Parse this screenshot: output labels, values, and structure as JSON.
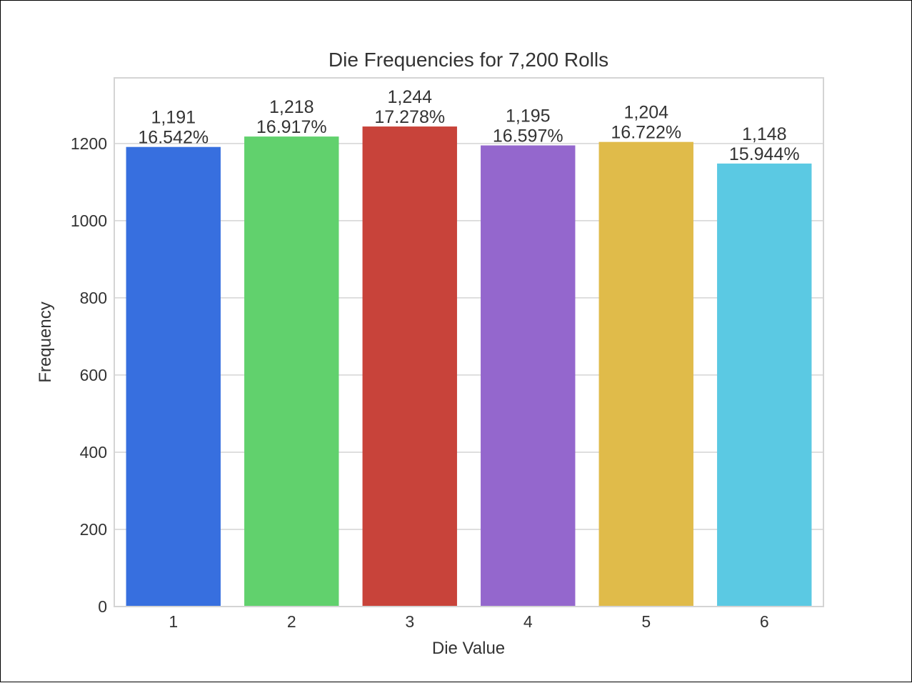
{
  "chart_data": {
    "type": "bar",
    "title": "Die Frequencies for 7,200 Rolls",
    "xlabel": "Die Value",
    "ylabel": "Frequency",
    "categories": [
      "1",
      "2",
      "3",
      "4",
      "5",
      "6"
    ],
    "values": [
      1191,
      1218,
      1244,
      1195,
      1204,
      1148
    ],
    "data_labels": [
      [
        "1,191",
        "16.542%"
      ],
      [
        "1,218",
        "16.917%"
      ],
      [
        "1,244",
        "17.278%"
      ],
      [
        "1,195",
        "16.597%"
      ],
      [
        "1,204",
        "16.722%"
      ],
      [
        "1,148",
        "15.944%"
      ]
    ],
    "colors": [
      "#376fdf",
      "#61d16d",
      "#c8433a",
      "#9467cd",
      "#e0bb4a",
      "#5bc9e3"
    ],
    "yticks": [
      0,
      200,
      400,
      600,
      800,
      1000,
      1200
    ],
    "ylim": [
      0,
      1370
    ],
    "grid": true,
    "legend": "none"
  }
}
